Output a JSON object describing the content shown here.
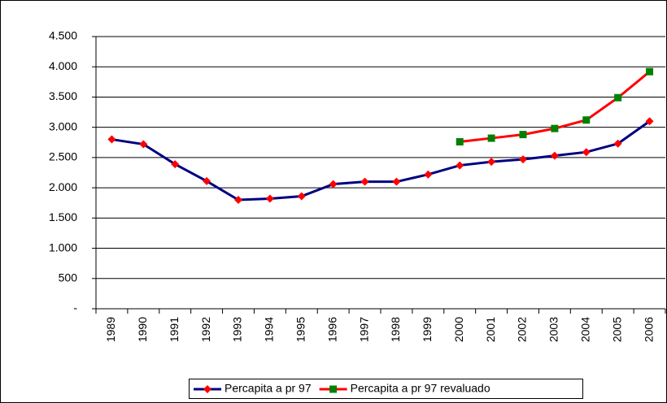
{
  "chart_data": {
    "type": "line",
    "categories": [
      "1989",
      "1990",
      "1991",
      "1992",
      "1993",
      "1994",
      "1995",
      "1996",
      "1997",
      "1998",
      "1999",
      "2000",
      "2001",
      "2002",
      "2003",
      "2004",
      "2005",
      "2006"
    ],
    "series": [
      {
        "name": "Percapita a pr 97",
        "color": "#000080",
        "marker": "diamond",
        "marker_color": "#ff0000",
        "values": [
          2800,
          2720,
          2390,
          2110,
          1800,
          1820,
          1860,
          2060,
          2100,
          2100,
          2220,
          2370,
          2430,
          2470,
          2530,
          2590,
          2730,
          3100
        ]
      },
      {
        "name": "Percapita a pr 97 revaluado",
        "color": "#ff0000",
        "marker": "square",
        "marker_color": "#008000",
        "values": [
          null,
          null,
          null,
          null,
          null,
          null,
          null,
          null,
          null,
          null,
          null,
          2760,
          2820,
          2880,
          2980,
          3120,
          3490,
          3920
        ]
      }
    ],
    "ylim": [
      0,
      4500
    ],
    "yticks": [
      {
        "value": 0,
        "label": "-"
      },
      500,
      {
        "value": 1000,
        "label": "1.000"
      },
      {
        "value": 1500,
        "label": "1.500"
      },
      {
        "value": 2000,
        "label": "2.000"
      },
      {
        "value": 2500,
        "label": "2.500"
      },
      {
        "value": 3000,
        "label": "3.000"
      },
      {
        "value": 3500,
        "label": "3.500"
      },
      {
        "value": 4000,
        "label": "4.000"
      },
      {
        "value": 4500,
        "label": "4.500"
      }
    ],
    "grid": true,
    "legend": "bottom"
  }
}
